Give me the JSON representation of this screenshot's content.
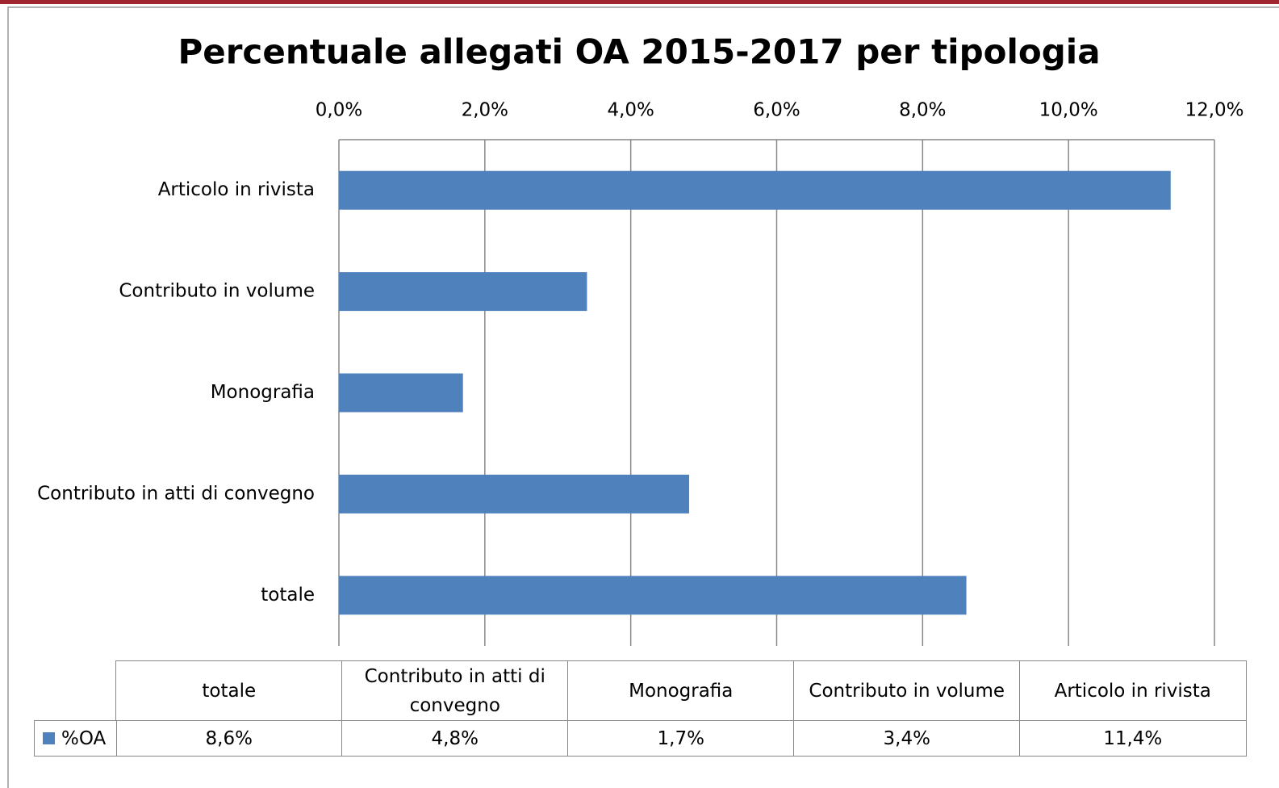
{
  "chart_data": {
    "type": "bar",
    "orientation": "horizontal",
    "title": "Percentuale allegati OA 2015-2017 per tipologia",
    "categories": [
      "totale",
      "Contributo in atti di convegno",
      "Monografia",
      "Contributo in volume",
      "Articolo in rivista"
    ],
    "series": [
      {
        "name": "%OA",
        "color": "#4f81bd",
        "values": [
          8.6,
          4.8,
          1.7,
          3.4,
          11.4
        ],
        "value_labels": [
          "8,6%",
          "4,8%",
          "1,7%",
          "3,4%",
          "11,4%"
        ]
      }
    ],
    "xlim": [
      0,
      12
    ],
    "xticks": [
      {
        "value": 0,
        "label": "0,0%"
      },
      {
        "value": 2,
        "label": "2,0%"
      },
      {
        "value": 4,
        "label": "4,0%"
      },
      {
        "value": 6,
        "label": "6,0%"
      },
      {
        "value": 8,
        "label": "8,0%"
      },
      {
        "value": 10,
        "label": "10,0%"
      },
      {
        "value": 12,
        "label": "12,0%"
      }
    ],
    "grid": true,
    "data_table": true
  }
}
